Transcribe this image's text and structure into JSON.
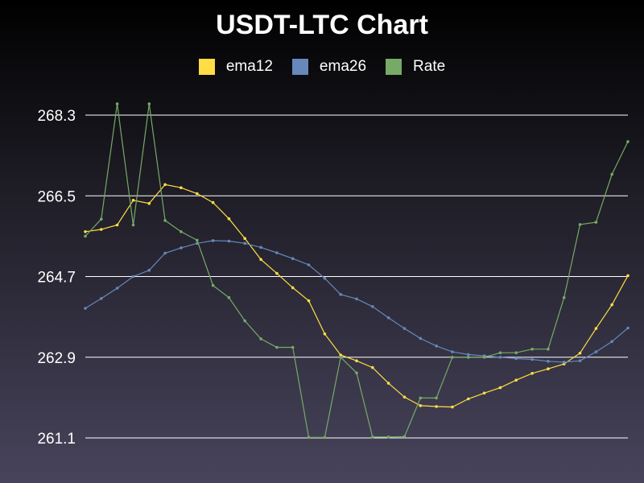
{
  "chart_data": {
    "type": "line",
    "title": "USDT-LTC Chart",
    "xlabel": "",
    "ylabel": "",
    "ylim": [
      261.1,
      268.3
    ],
    "y_ticks": [
      "261.1",
      "262.9",
      "264.7",
      "266.5",
      "268.3"
    ],
    "grid": true,
    "legend_placement": "top-center",
    "series": [
      {
        "name": "ema12",
        "color": "#ffdd44",
        "values": [
          265.7,
          265.75,
          265.85,
          266.4,
          266.33,
          266.75,
          266.68,
          266.55,
          266.35,
          265.99,
          265.55,
          265.08,
          264.77,
          264.45,
          264.16,
          263.42,
          262.95,
          262.82,
          262.67,
          262.32,
          262.01,
          261.82,
          261.8,
          261.79,
          261.97,
          262.1,
          262.22,
          262.39,
          262.54,
          262.64,
          262.75,
          262.99,
          263.54,
          264.07,
          264.72
        ]
      },
      {
        "name": "ema26",
        "color": "#6688bb",
        "values": [
          263.99,
          264.21,
          264.44,
          264.7,
          264.84,
          265.22,
          265.34,
          265.44,
          265.5,
          265.49,
          265.44,
          265.35,
          265.23,
          265.1,
          264.96,
          264.66,
          264.3,
          264.2,
          264.03,
          263.78,
          263.54,
          263.32,
          263.15,
          263.02,
          262.96,
          262.93,
          262.9,
          262.87,
          262.85,
          262.81,
          262.79,
          262.82,
          263.02,
          263.25,
          263.55
        ]
      },
      {
        "name": "Rate",
        "color": "#77aa66",
        "values": [
          265.6,
          265.98,
          268.55,
          265.85,
          268.55,
          265.95,
          265.7,
          265.51,
          264.5,
          264.23,
          263.71,
          263.31,
          263.12,
          263.12,
          261.11,
          261.11,
          262.9,
          262.55,
          261.12,
          261.12,
          261.13,
          261.99,
          261.99,
          262.9,
          262.9,
          262.9,
          263.0,
          263.0,
          263.08,
          263.08,
          264.23,
          265.86,
          265.91,
          266.98,
          267.71
        ]
      }
    ]
  }
}
